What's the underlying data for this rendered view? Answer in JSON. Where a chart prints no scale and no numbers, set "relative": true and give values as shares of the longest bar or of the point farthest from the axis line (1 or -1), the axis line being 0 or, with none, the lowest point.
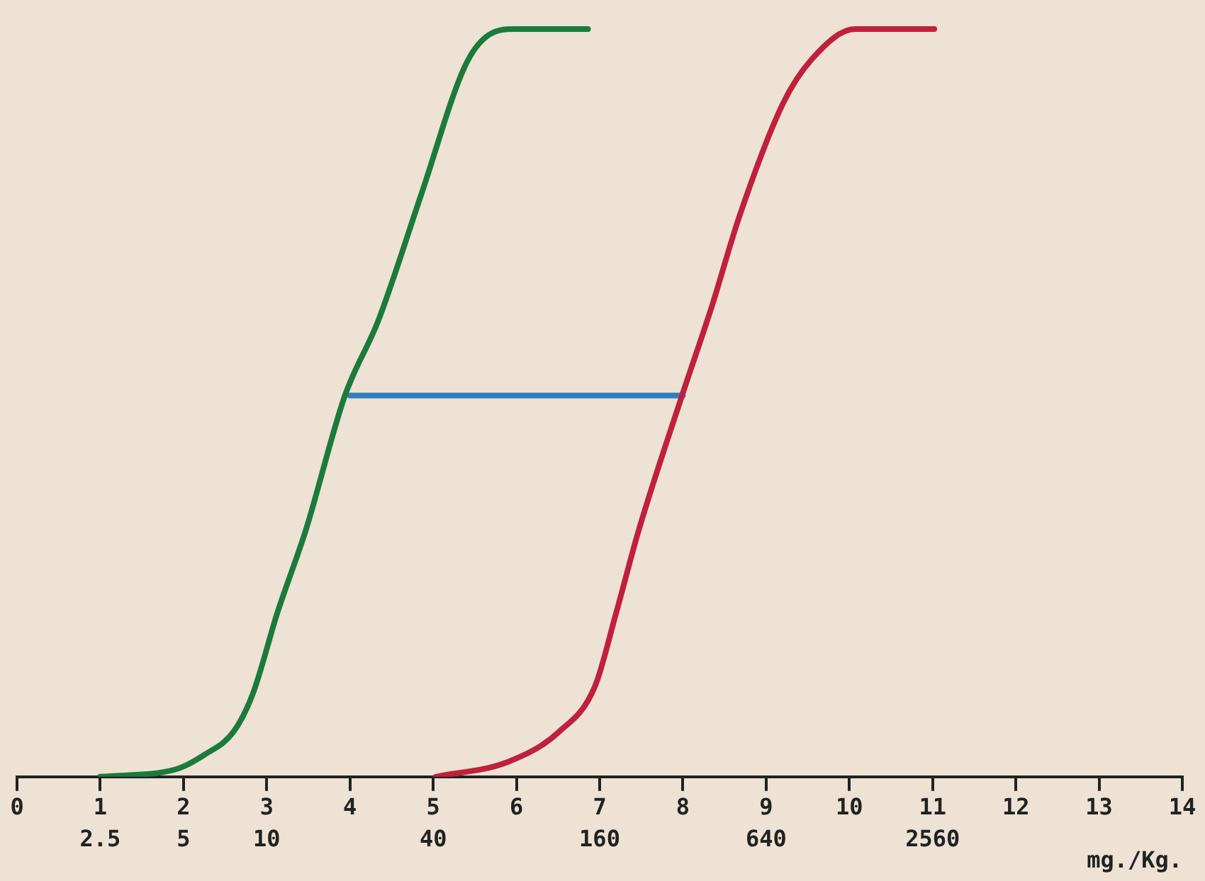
{
  "chart_data": {
    "type": "line",
    "relative": true,
    "xlim": [
      0,
      14
    ],
    "xticks": [
      0,
      1,
      2,
      3,
      4,
      5,
      6,
      7,
      8,
      9,
      10,
      11,
      12,
      13,
      14
    ],
    "x2lim": [
      1.25,
      20480
    ],
    "x2ticks": [
      2.5,
      5,
      10,
      40,
      160,
      640,
      2560
    ],
    "log": "x2",
    "x2label": "mg./Kg.",
    "grid": false,
    "legend": false,
    "marker": "none",
    "line_style": "solid",
    "series": [
      {
        "color": "#1b7a3c",
        "x": [
          1.0,
          1.91,
          2.26,
          2.6,
          2.83,
          3.13,
          3.47,
          3.94,
          4.34,
          4.86,
          5.38,
          5.64,
          5.99,
          6.86
        ],
        "values": [
          0,
          0.01,
          0.03,
          0.06,
          0.11,
          0.22,
          0.33,
          0.51,
          0.61,
          0.78,
          0.95,
          0.99,
          1,
          1
        ]
      },
      {
        "color": "#c0203c",
        "x": [
          5.03,
          5.9,
          6.51,
          6.94,
          7.2,
          7.47,
          7.99,
          8.35,
          8.68,
          9.2,
          9.55,
          10.07,
          11.02
        ],
        "values": [
          0,
          0.02,
          0.06,
          0.12,
          0.22,
          0.33,
          0.51,
          0.63,
          0.75,
          0.9,
          0.96,
          1,
          1
        ]
      },
      {
        "color": "#2f7fc0",
        "x": [
          4,
          8
        ],
        "values": [
          0.51,
          0.51
        ]
      }
    ]
  }
}
